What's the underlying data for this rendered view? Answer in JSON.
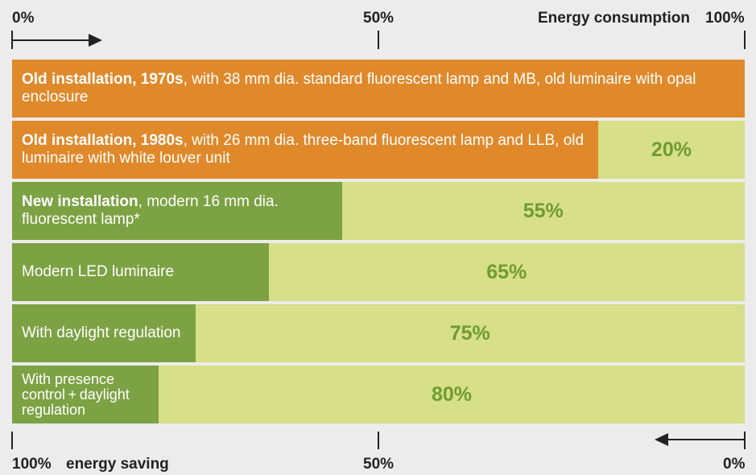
{
  "chart_data": {
    "type": "stacked-barh",
    "categories": [
      {
        "bold": "Old installation, 1970s",
        "text": ", with 38 mm dia. standard fluorescent lamp and MB, old luminaire with opal enclosure"
      },
      {
        "bold": "Old installation, 1980s",
        "text": ", with 26 mm dia. three-band fluorescent lamp and LLB, old luminaire with white louver unit"
      },
      {
        "bold": "New installation",
        "text": ", modern 16 mm dia. fluorescent lamp*"
      },
      {
        "text": "Modern LED luminaire"
      },
      {
        "text": "With daylight regulation"
      },
      {
        "text": "With presence control + daylight regulation"
      }
    ],
    "series": [
      {
        "name": "Energy consumption",
        "values": [
          100,
          80,
          45,
          35,
          25,
          20
        ],
        "colors": [
          "#e0892b",
          "#e0892b",
          "#7ca243",
          "#7ca243",
          "#7ca243",
          "#7ca243"
        ]
      },
      {
        "name": "energy saving",
        "values": [
          null,
          20,
          55,
          65,
          75,
          80
        ],
        "value_labels": [
          null,
          "20%",
          "55%",
          "65%",
          "75%",
          "80%"
        ],
        "color": "#d7df88",
        "label_color": "#6f9b35"
      }
    ],
    "xlim": [
      0,
      100
    ],
    "xticks": [
      {
        "value": 0,
        "label": "0%"
      },
      {
        "value": 50,
        "label": "50%"
      },
      {
        "value": 100,
        "label": "100%"
      }
    ],
    "x2lim": [
      100,
      0
    ],
    "x2ticks": [
      {
        "value": 100,
        "label": "100%"
      },
      {
        "value": 50,
        "label": "50%"
      },
      {
        "value": 0,
        "label": "0%"
      }
    ]
  }
}
